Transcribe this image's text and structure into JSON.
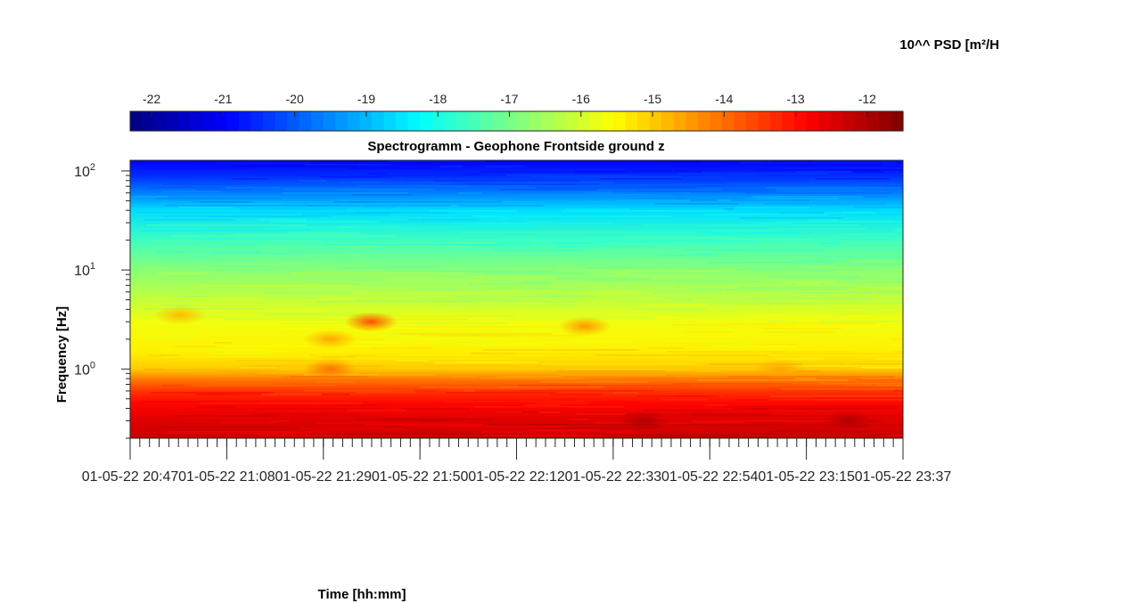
{
  "chart_data": {
    "type": "heatmap",
    "title": "Spectrogramm - Geophone Frontside ground z",
    "xlabel": "Time [hh:mm]",
    "ylabel": "Frequency [Hz]",
    "colorbar": {
      "label": "10^^ PSD [m²/H",
      "ticks": [
        "-22",
        "-21",
        "-20",
        "-19",
        "-18",
        "-17",
        "-16",
        "-15",
        "-14",
        "-13",
        "-12"
      ],
      "range": [
        -22.3,
        -11.5
      ],
      "colormap": "jet",
      "location": "top"
    },
    "x": {
      "ticklabels": [
        "01-05-22 20:47",
        "01-05-22 21:08",
        "01-05-22 21:29",
        "01-05-22 21:50",
        "01-05-22 22:12",
        "01-05-22 22:33",
        "01-05-22 22:54",
        "01-05-22 23:15",
        "01-05-22 23:37"
      ],
      "range": [
        "01-05-22 20:47",
        "01-05-22 23:37"
      ],
      "minor_ticks": 80
    },
    "y": {
      "scale": "log",
      "range": [
        0.2,
        128
      ],
      "ticklabels": [
        {
          "base": "10",
          "exp": "0",
          "value": 1
        },
        {
          "base": "10",
          "exp": "1",
          "value": 10
        },
        {
          "base": "10",
          "exp": "2",
          "value": 100
        }
      ]
    },
    "psd_profile": [
      {
        "freq": 0.2,
        "psd": -12.3
      },
      {
        "freq": 0.3,
        "psd": -12.5
      },
      {
        "freq": 0.45,
        "psd": -12.9
      },
      {
        "freq": 0.6,
        "psd": -13.4
      },
      {
        "freq": 0.8,
        "psd": -14.2
      },
      {
        "freq": 1.0,
        "psd": -15.0
      },
      {
        "freq": 1.5,
        "psd": -15.4
      },
      {
        "freq": 3.0,
        "psd": -15.7
      },
      {
        "freq": 5.0,
        "psd": -16.2
      },
      {
        "freq": 10,
        "psd": -16.8
      },
      {
        "freq": 20,
        "psd": -17.6
      },
      {
        "freq": 40,
        "psd": -18.6
      },
      {
        "freq": 60,
        "psd": -19.6
      },
      {
        "freq": 90,
        "psd": -20.5
      },
      {
        "freq": 128,
        "psd": -21.0
      }
    ],
    "hotspots": [
      {
        "time": "01-05-22 21:40",
        "freq": 3.0,
        "psd": -13.6
      },
      {
        "time": "01-05-22 21:31",
        "freq": 1.0,
        "psd": -14.0
      },
      {
        "time": "01-05-22 21:31",
        "freq": 2.0,
        "psd": -14.6
      },
      {
        "time": "01-05-22 20:58",
        "freq": 3.5,
        "psd": -14.8
      },
      {
        "time": "01-05-22 22:27",
        "freq": 2.7,
        "psd": -14.4
      },
      {
        "time": "01-05-22 23:10",
        "freq": 1.0,
        "psd": -14.6
      },
      {
        "time": "01-05-22 22:40",
        "freq": 0.3,
        "psd": -12.0
      },
      {
        "time": "01-05-22 23:25",
        "freq": 0.3,
        "psd": -12.0
      }
    ],
    "grid": false
  }
}
